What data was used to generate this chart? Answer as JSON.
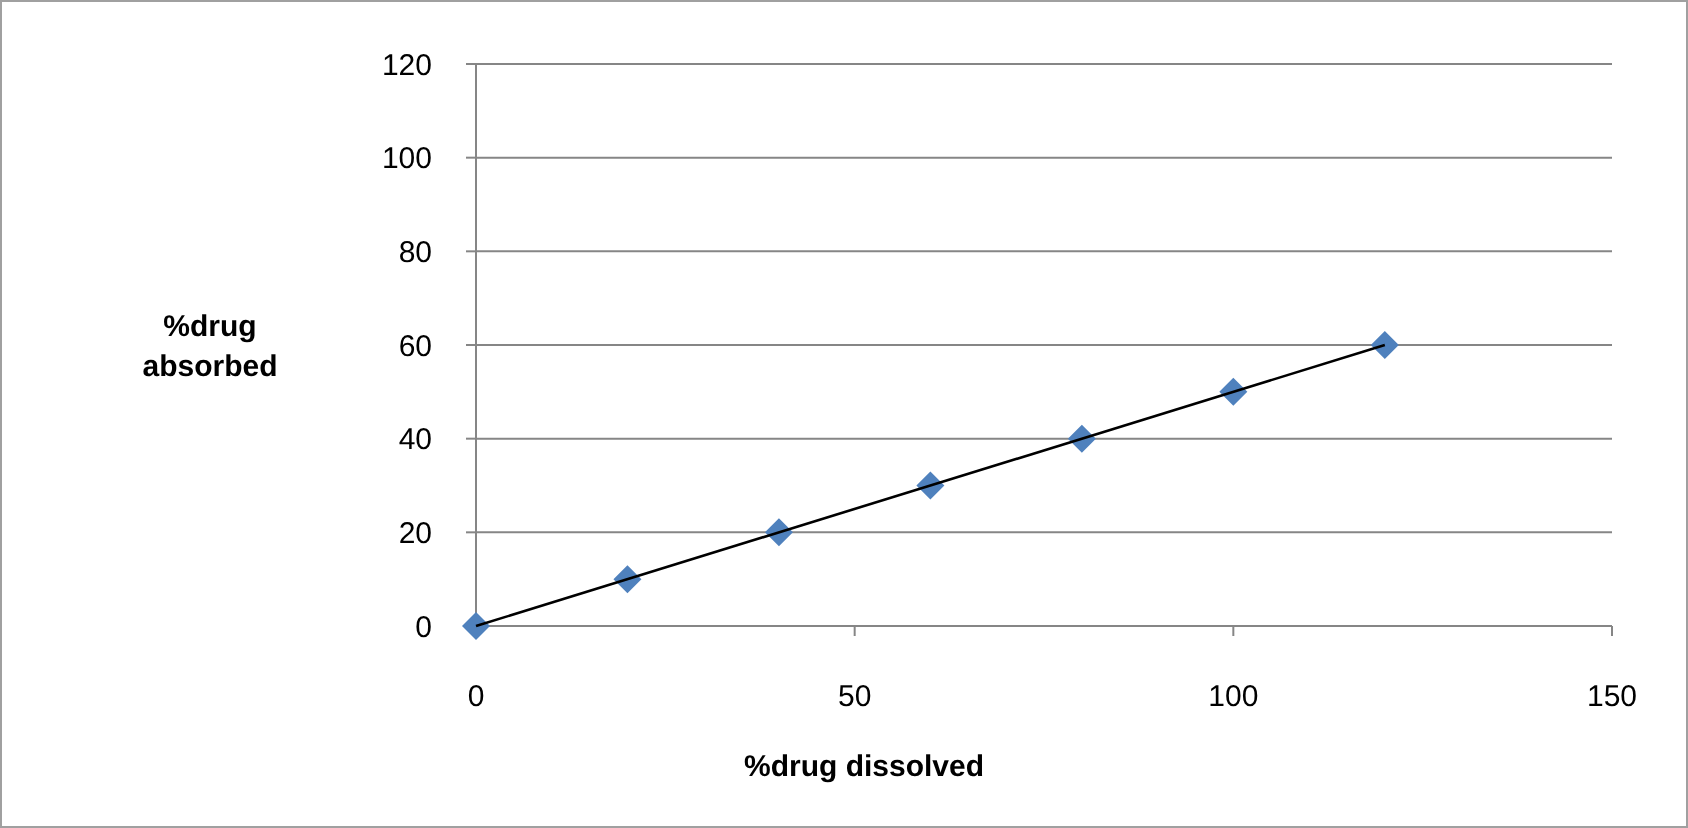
{
  "chart_data": {
    "type": "scatter",
    "xlabel": "%drug dissolved",
    "ylabel": "%drug absorbed",
    "x": [
      0,
      20,
      40,
      60,
      80,
      100,
      120
    ],
    "series": [
      {
        "color": "#4f81bd",
        "marker": "diamond",
        "values": [
          0,
          10,
          20,
          30,
          40,
          50,
          60
        ]
      },
      {
        "type": "line",
        "color": "#000000",
        "x": [
          0,
          120
        ],
        "values": [
          0,
          60
        ],
        "line_style": "solid",
        "marker": "none"
      }
    ],
    "xlim": [
      0,
      150
    ],
    "xticks": [
      0,
      50,
      100,
      150
    ],
    "ylim": [
      0,
      120
    ],
    "yticks": [
      0,
      20,
      40,
      60,
      80,
      100,
      120
    ],
    "grid": "y"
  }
}
